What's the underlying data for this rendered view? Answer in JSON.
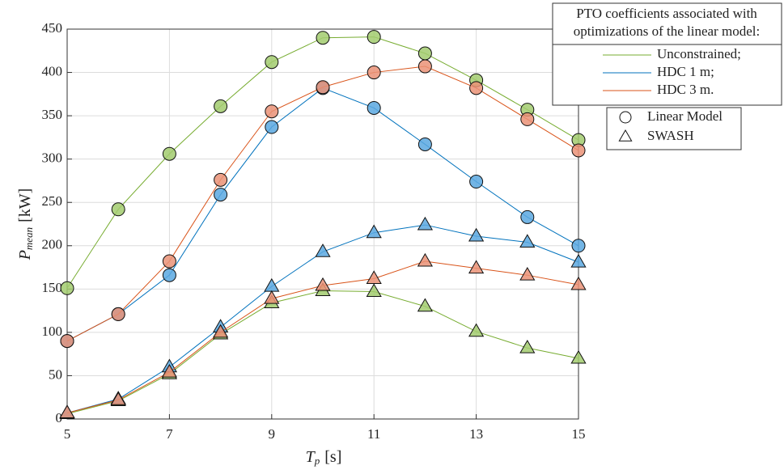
{
  "chart_data": {
    "type": "line",
    "xlabel": {
      "text": "T",
      "subscript": "p",
      "unit": "[s]"
    },
    "ylabel": {
      "text": "P",
      "subscript": "mean",
      "unit": "[kW]"
    },
    "x": [
      5,
      6,
      7,
      8,
      9,
      10,
      11,
      12,
      13,
      14,
      15
    ],
    "xlim": [
      5,
      15
    ],
    "xticks": [
      5,
      7,
      9,
      11,
      13,
      15
    ],
    "ylim": [
      0,
      450
    ],
    "yticks": [
      0,
      50,
      100,
      150,
      200,
      250,
      300,
      350,
      400,
      450
    ],
    "grid": true,
    "legend_title": [
      "PTO coefficients associated with",
      "optimizations of the linear model:"
    ],
    "legend_position": "top-right",
    "marker_legend": [
      {
        "name": "Linear Model",
        "marker": "circle"
      },
      {
        "name": "SWASH",
        "marker": "triangle"
      }
    ],
    "series": [
      {
        "name": "Unconstrained;",
        "marker": "circle",
        "color": "#77ac30",
        "marker_color": "#a2cb6e",
        "values": [
          151,
          242,
          306,
          361,
          412,
          440,
          441,
          422,
          391,
          357,
          322
        ]
      },
      {
        "name": "HDC 1 m;",
        "marker": "circle",
        "color": "#0072bd",
        "marker_color": "#5ba8e0",
        "values": [
          90,
          121,
          166,
          259,
          337,
          382,
          359,
          317,
          274,
          233,
          200
        ]
      },
      {
        "name": "HDC 3 m.",
        "marker": "circle",
        "color": "#d95319",
        "marker_color": "#ea9277",
        "values": [
          90,
          121,
          182,
          276,
          355,
          383,
          400,
          407,
          382,
          346,
          310
        ]
      },
      {
        "name": "Unconstrained;",
        "marker": "triangle",
        "color": "#77ac30",
        "marker_color": "#a2cb6e",
        "values": [
          6,
          21,
          52,
          98,
          134,
          148,
          147,
          130,
          101,
          82,
          70
        ]
      },
      {
        "name": "HDC 1 m;",
        "marker": "triangle",
        "color": "#0072bd",
        "marker_color": "#5ba8e0",
        "values": [
          7,
          23,
          60,
          106,
          153,
          193,
          215,
          224,
          211,
          204,
          181
        ]
      },
      {
        "name": "HDC 3 m.",
        "marker": "triangle",
        "color": "#d95319",
        "marker_color": "#ea9277",
        "values": [
          7,
          22,
          54,
          100,
          139,
          154,
          162,
          182,
          174,
          166,
          155
        ]
      }
    ]
  }
}
